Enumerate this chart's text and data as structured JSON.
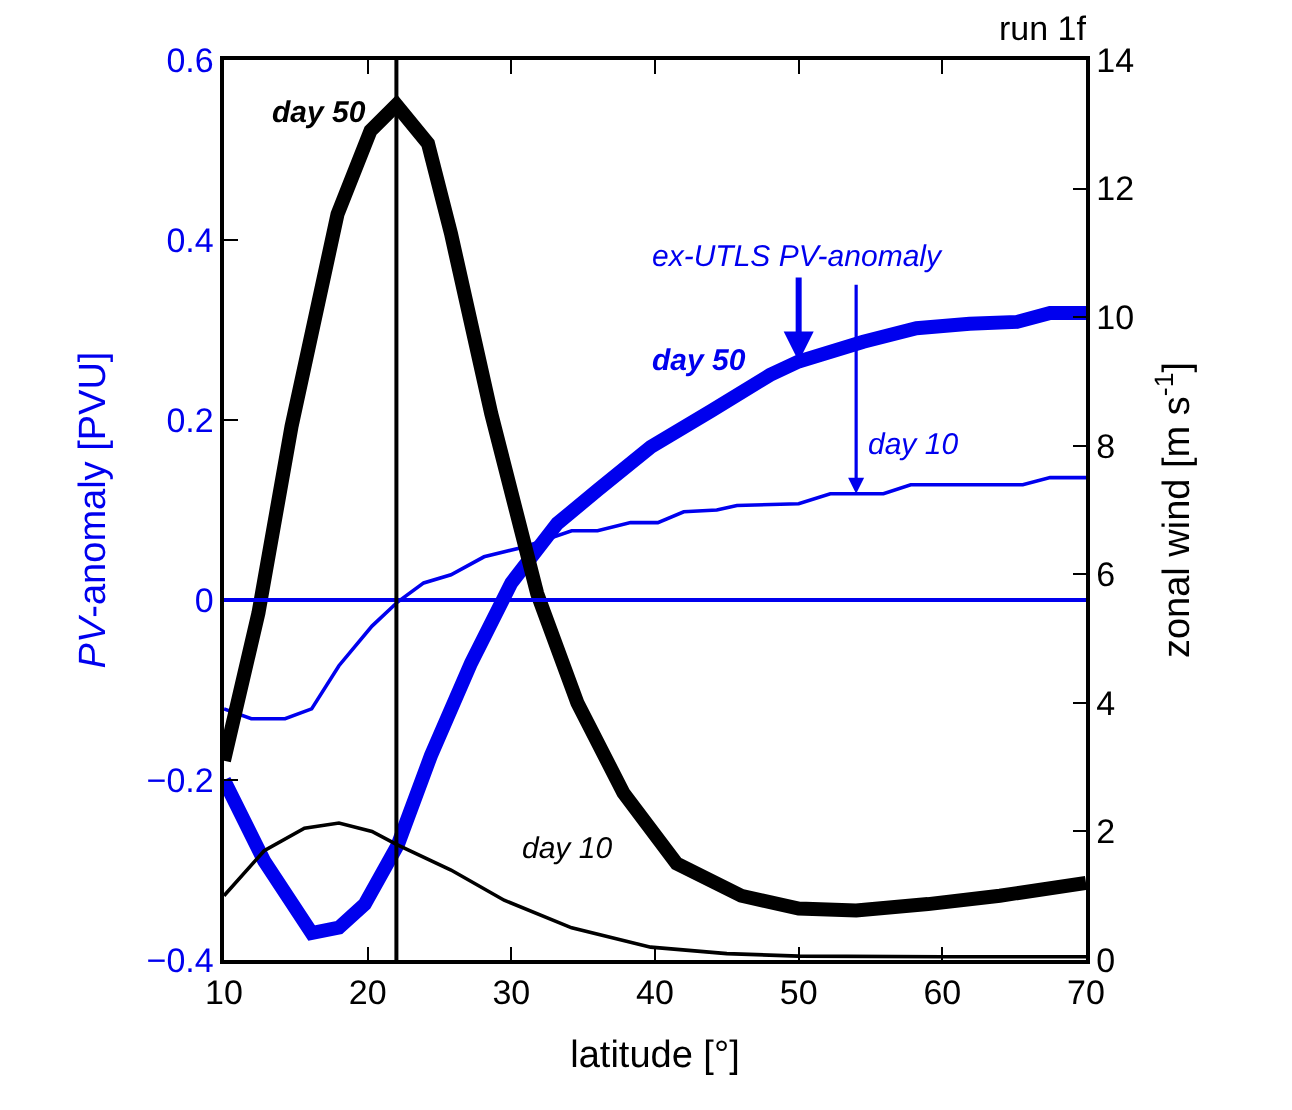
{
  "chart_data": {
    "type": "line",
    "title": "run 1f",
    "xlabel": "latitude [°]",
    "ylabel": "PV-anomaly [PVU]",
    "y2label": "zonal wind [m s$^{-1}$]",
    "xlim": [
      10,
      70
    ],
    "xticks": [
      10,
      20,
      30,
      40,
      50,
      60,
      70
    ],
    "ylim": [
      -0.4,
      0.6
    ],
    "yticks": [
      {
        "value": -0.4,
        "label": "−0.4"
      },
      {
        "value": -0.2,
        "label": "−0.2"
      },
      0,
      0.2,
      0.4,
      0.6
    ],
    "y2lim": [
      0,
      14
    ],
    "y2ticks": [
      0,
      2,
      4,
      6,
      8,
      10,
      12,
      14
    ],
    "marker": "none",
    "line_style": "solid",
    "series": [
      {
        "color": "#000000",
        "axis": "y2",
        "x": [
          10,
          12.4,
          14.7,
          17.9,
          20.2,
          22,
          24.2,
          25.8,
          28.6,
          31.8,
          34.6,
          37.8,
          41.5,
          46,
          50,
          54,
          59,
          64,
          70
        ],
        "values": [
          3.1,
          5.4,
          8.3,
          11.6,
          12.9,
          13.3,
          12.7,
          11.3,
          8.5,
          5.7,
          4.0,
          2.6,
          1.5,
          1.0,
          0.8,
          0.77,
          0.87,
          1.0,
          1.2
        ]
      },
      {
        "color": "#000000",
        "axis": "y2",
        "x": [
          10,
          12.8,
          15.6,
          18,
          20.3,
          22,
          25.8,
          29.5,
          34.2,
          39.7,
          45,
          50,
          60,
          70
        ],
        "values": [
          1.0,
          1.7,
          2.05,
          2.13,
          2.0,
          1.8,
          1.4,
          0.93,
          0.5,
          0.2,
          0.1,
          0.06,
          0.05,
          0.05
        ]
      },
      {
        "color": "#0000ee",
        "x": [
          10,
          12.8,
          16.1,
          18,
          19.8,
          22.1,
          24.4,
          27.2,
          30,
          33.2,
          36,
          39.7,
          43.9,
          48,
          50,
          54.5,
          58.2,
          61.9,
          65.2,
          67.5,
          70
        ],
        "values": [
          -0.2,
          -0.29,
          -0.37,
          -0.364,
          -0.338,
          -0.272,
          -0.173,
          -0.07,
          0.019,
          0.085,
          0.122,
          0.17,
          0.21,
          0.25,
          0.265,
          0.287,
          0.302,
          0.307,
          0.309,
          0.319,
          0.319
        ]
      },
      {
        "color": "#0000ee",
        "x": [
          10,
          11.9,
          14.25,
          16.1,
          18,
          20.3,
          22.1,
          23.9,
          25.8,
          28.1,
          30.9,
          34.2,
          36,
          38.3,
          40.2,
          42,
          44.3,
          45.7,
          50,
          52.2,
          55.9,
          57.8,
          65.6,
          67.5,
          70
        ],
        "values": [
          -0.121,
          -0.132,
          -0.132,
          -0.121,
          -0.073,
          -0.029,
          -0.002,
          0.019,
          0.028,
          0.048,
          0.059,
          0.077,
          0.077,
          0.086,
          0.086,
          0.098,
          0.1,
          0.105,
          0.107,
          0.118,
          0.118,
          0.128,
          0.128,
          0.136,
          0.136
        ]
      }
    ],
    "ref_lines": [
      {
        "axis": "y",
        "value": 0,
        "color": "#0000ee"
      },
      {
        "axis": "x",
        "value": 22,
        "color": "#000000"
      }
    ],
    "annotations": [
      "day 50",
      "day 10",
      {
        "text": "ex-UTLS PV-anomaly",
        "x": 50,
        "y": 0.265
      },
      "day 50",
      {
        "text": "day 10",
        "x": 54,
        "y": 0.118
      }
    ]
  }
}
